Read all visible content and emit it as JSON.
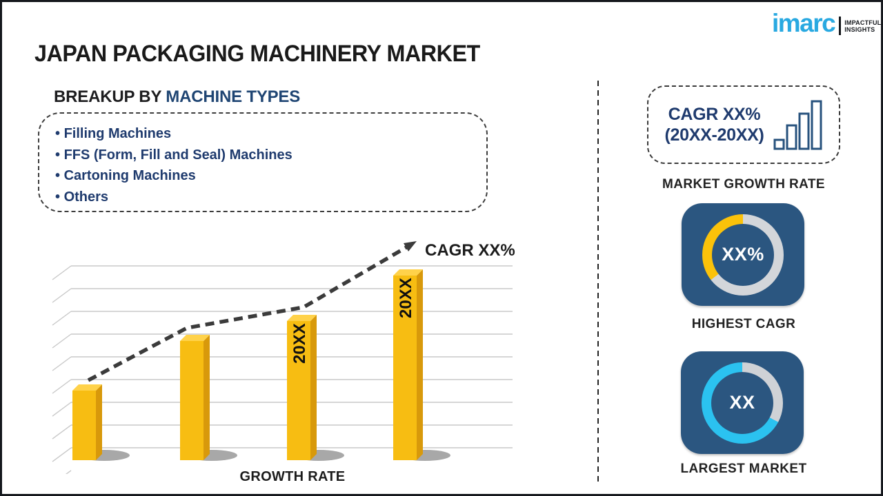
{
  "page": {
    "title": "JAPAN PACKAGING MACHINERY MARKET"
  },
  "logo": {
    "brand": "imarc",
    "tagline_line1": "IMPACTFUL",
    "tagline_line2": "INSIGHTS",
    "brand_color": "#29A9E1"
  },
  "breakup": {
    "heading_prefix": "BREAKUP BY ",
    "heading_highlight": "MACHINE TYPES",
    "items": [
      "Filling Machines",
      "FFS (Form, Fill and Seal) Machines",
      "Cartoning Machines",
      "Others"
    ]
  },
  "chart_data": {
    "type": "bar",
    "title": "",
    "xlabel": "GROWTH RATE",
    "ylabel": "",
    "categories": [
      "bar-1",
      "bar-2",
      "bar-3 (20XX)",
      "bar-4 (20XX)"
    ],
    "values": [
      35,
      60,
      70,
      93
    ],
    "bar_labels": [
      "",
      "",
      "20XX",
      "20XX"
    ],
    "trend_label": "CAGR XX%",
    "trend_style": "dashed-arrow-up",
    "bar_color": "#F7BD12",
    "bar_top_color": "#FFD24A",
    "bar_side_color": "#D8990B",
    "ylim": [
      0,
      100
    ],
    "grid": true,
    "legend": "none"
  },
  "right_panel": {
    "cagr_box": {
      "line1": "CAGR XX%",
      "line2": "(20XX-20XX)"
    },
    "market_growth_rate_label": "MARKET GROWTH RATE",
    "highest_cagr": {
      "value": "XX%",
      "label": "HIGHEST CAGR",
      "ring": {
        "base_color": "#D3D6DA",
        "accent_color": "#FBC20A",
        "accent_from_deg": 232
      }
    },
    "largest_market": {
      "value": "XX",
      "label": "LARGEST MARKET",
      "ring": {
        "base_color": "#CFD2D6",
        "accent_color": "#2BC2F0",
        "accent_from_deg": 118
      }
    },
    "card_color": "#2B5680"
  }
}
